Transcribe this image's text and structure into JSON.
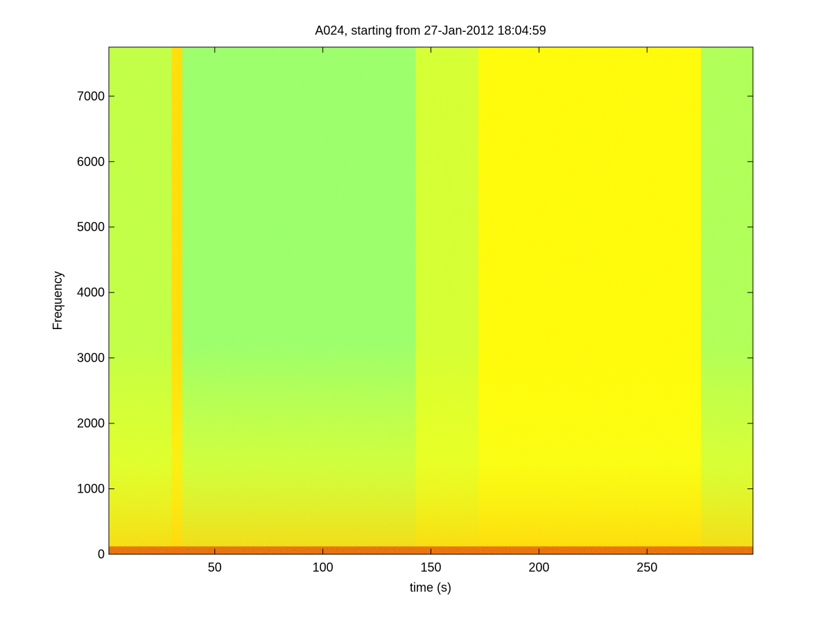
{
  "chart_data": {
    "type": "heatmap",
    "title": "A024, starting from 27-Jan-2012 18:04:59",
    "xlabel": "time (s)",
    "ylabel": "Frequency",
    "xlim": [
      1,
      299
    ],
    "ylim": [
      0,
      7750
    ],
    "x_ticks": [
      50,
      100,
      150,
      200,
      250
    ],
    "y_ticks": [
      0,
      1000,
      2000,
      3000,
      4000,
      5000,
      6000,
      7000
    ],
    "grid": false,
    "legend": "none",
    "colormap": [
      "#00007f",
      "#0000ff",
      "#007fff",
      "#00ffff",
      "#7fff7f",
      "#ffff00",
      "#ff7f00",
      "#ff0000",
      "#7f0000"
    ],
    "segments": [
      {
        "t_start": 1,
        "t_end": 30,
        "intensity": 0.56
      },
      {
        "t_start": 30,
        "t_end": 35,
        "intensity": 0.66
      },
      {
        "t_start": 35,
        "t_end": 143,
        "intensity": 0.52
      },
      {
        "t_start": 143,
        "t_end": 172,
        "intensity": 0.58
      },
      {
        "t_start": 172,
        "t_end": 275,
        "intensity": 0.63
      },
      {
        "t_start": 275,
        "t_end": 299,
        "intensity": 0.54
      }
    ]
  }
}
